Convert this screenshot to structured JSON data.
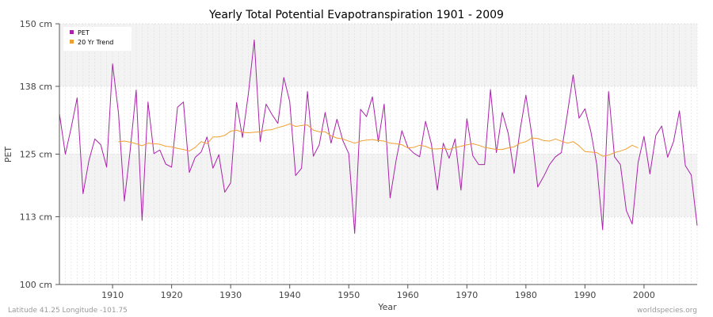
{
  "chart_data": {
    "type": "line",
    "title": "Yearly Total Potential Evapotranspiration 1901 - 2009",
    "xlabel": "Year",
    "ylabel": "PET",
    "xlim": [
      1901,
      2009
    ],
    "ylim": [
      100,
      150
    ],
    "y_ticks": [
      100,
      113,
      125,
      138,
      150
    ],
    "y_tick_labels": [
      "100 cm",
      "113 cm",
      "125 cm",
      "138 cm",
      "150 cm"
    ],
    "x_ticks": [
      1910,
      1920,
      1930,
      1940,
      1950,
      1960,
      1970,
      1980,
      1990,
      2000
    ],
    "x_tick_labels": [
      "1910",
      "1920",
      "1930",
      "1940",
      "1950",
      "1960",
      "1970",
      "1980",
      "1990",
      "2000"
    ],
    "legend": {
      "position": "top-left",
      "entries": [
        "PET",
        "20 Yr Trend"
      ]
    },
    "colors": {
      "pet": "#aa22aa",
      "trend": "#f0a030",
      "band": "#f3f3f3",
      "grid": "#dddddd",
      "axis": "#555555"
    },
    "series": [
      {
        "name": "PET",
        "x": [
          1901,
          1902,
          1903,
          1904,
          1905,
          1906,
          1907,
          1908,
          1909,
          1910,
          1911,
          1912,
          1913,
          1914,
          1915,
          1916,
          1917,
          1918,
          1919,
          1920,
          1921,
          1922,
          1923,
          1924,
          1925,
          1926,
          1927,
          1928,
          1929,
          1930,
          1931,
          1932,
          1933,
          1934,
          1935,
          1936,
          1937,
          1938,
          1939,
          1940,
          1941,
          1942,
          1943,
          1944,
          1945,
          1946,
          1947,
          1948,
          1949,
          1950,
          1951,
          1952,
          1953,
          1954,
          1955,
          1956,
          1957,
          1958,
          1959,
          1960,
          1961,
          1962,
          1963,
          1964,
          1965,
          1966,
          1967,
          1968,
          1969,
          1970,
          1971,
          1972,
          1973,
          1974,
          1975,
          1976,
          1977,
          1978,
          1979,
          1980,
          1981,
          1982,
          1983,
          1984,
          1985,
          1986,
          1987,
          1988,
          1989,
          1990,
          1991,
          1992,
          1993,
          1994,
          1995,
          1996,
          1997,
          1998,
          1999,
          2000,
          2001,
          2002,
          2003,
          2004,
          2005,
          2006,
          2007,
          2008,
          2009
        ],
        "values": [
          132.8,
          125.0,
          130.1,
          135.8,
          117.4,
          123.8,
          127.9,
          126.8,
          122.5,
          142.3,
          132.9,
          116.0,
          125.9,
          137.3,
          112.3,
          135.0,
          125.1,
          125.8,
          123.1,
          122.5,
          134.0,
          135.0,
          121.5,
          124.4,
          125.4,
          128.3,
          122.3,
          124.9,
          117.7,
          119.5,
          134.9,
          128.2,
          136.6,
          146.9,
          127.4,
          134.6,
          132.6,
          130.9,
          139.7,
          135.1,
          120.9,
          122.3,
          137.0,
          124.6,
          126.8,
          133.0,
          127.1,
          131.7,
          127.6,
          125.1,
          109.8,
          133.6,
          132.2,
          136.0,
          127.4,
          134.6,
          116.6,
          123.7,
          129.5,
          126.3,
          125.2,
          124.5,
          131.3,
          126.9,
          118.1,
          127.1,
          124.2,
          127.9,
          118.1,
          131.8,
          124.7,
          123.0,
          123.0,
          137.4,
          125.3,
          133.0,
          129.0,
          121.3,
          129.5,
          136.3,
          128.6,
          118.7,
          120.7,
          123.0,
          124.5,
          125.3,
          132.6,
          140.2,
          131.9,
          133.7,
          129.3,
          123.0,
          110.5,
          137.0,
          124.5,
          123.0,
          114.2,
          111.6,
          123.4,
          128.4,
          121.2,
          128.6,
          130.4,
          124.4,
          127.4,
          133.3,
          122.8,
          121.0,
          111.3
        ]
      },
      {
        "name": "20 Yr Trend",
        "x": [
          1911,
          1912,
          1913,
          1914,
          1915,
          1916,
          1917,
          1918,
          1919,
          1920,
          1921,
          1922,
          1923,
          1924,
          1925,
          1926,
          1927,
          1928,
          1929,
          1930,
          1931,
          1932,
          1933,
          1934,
          1935,
          1936,
          1937,
          1938,
          1939,
          1940,
          1941,
          1942,
          1943,
          1944,
          1945,
          1946,
          1947,
          1948,
          1949,
          1950,
          1951,
          1952,
          1953,
          1954,
          1955,
          1956,
          1957,
          1958,
          1959,
          1960,
          1961,
          1962,
          1963,
          1964,
          1965,
          1966,
          1967,
          1968,
          1969,
          1970,
          1971,
          1972,
          1973,
          1974,
          1975,
          1976,
          1977,
          1978,
          1979,
          1980,
          1981,
          1982,
          1983,
          1984,
          1985,
          1986,
          1987,
          1988,
          1989,
          1990,
          1991,
          1992,
          1993,
          1994,
          1995,
          1996,
          1997,
          1998,
          1999
        ],
        "values": [
          127.4,
          127.5,
          127.3,
          127.0,
          126.6,
          127.1,
          127.0,
          126.9,
          126.5,
          126.4,
          126.1,
          125.9,
          125.6,
          126.3,
          127.4,
          127.0,
          128.3,
          128.3,
          128.6,
          129.4,
          129.6,
          129.2,
          129.1,
          129.2,
          129.3,
          129.6,
          129.7,
          130.1,
          130.4,
          130.8,
          130.3,
          130.5,
          130.6,
          129.6,
          129.3,
          129.3,
          128.5,
          128.1,
          127.9,
          127.5,
          127.1,
          127.5,
          127.7,
          127.8,
          127.6,
          127.5,
          127.1,
          127.0,
          126.8,
          126.2,
          126.3,
          126.7,
          126.5,
          126.0,
          126.0,
          126.1,
          125.9,
          126.3,
          126.5,
          126.8,
          127.0,
          126.7,
          126.3,
          126.1,
          125.9,
          125.9,
          126.2,
          126.4,
          127.1,
          127.4,
          128.1,
          128.0,
          127.6,
          127.5,
          127.9,
          127.5,
          127.1,
          127.4,
          126.6,
          125.5,
          125.4,
          125.3,
          124.6,
          124.8,
          125.3,
          125.6,
          126.0,
          126.7,
          126.2
        ]
      }
    ]
  },
  "footer": {
    "left": "Latitude 41.25 Longitude -101.75",
    "right": "worldspecies.org"
  }
}
